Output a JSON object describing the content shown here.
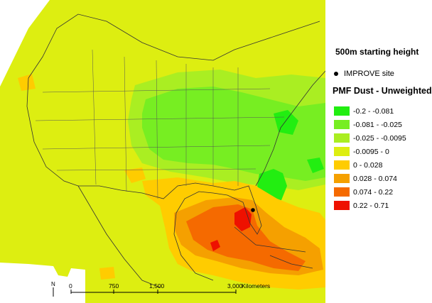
{
  "map": {
    "subtitle": "500m starting height",
    "site_marker_label": "IMPROVE site",
    "legend_title": "PMF Dust - Unweighted",
    "legend": [
      {
        "label": "-0.2 - -0.081",
        "color": "#22ee11"
      },
      {
        "label": "-0.081 - -0.025",
        "color": "#77ee22"
      },
      {
        "label": "-0.025 - -0.0095",
        "color": "#aaee22"
      },
      {
        "label": "-0.0095 - 0",
        "color": "#ddee11"
      },
      {
        "label": "0 - 0.028",
        "color": "#ffcc00"
      },
      {
        "label": "0.028 - 0.074",
        "color": "#f5a000"
      },
      {
        "label": "0.074 - 0.22",
        "color": "#f56a00"
      },
      {
        "label": "0.22 - 0.71",
        "color": "#ee1100"
      }
    ],
    "scale": {
      "ticks": [
        "0",
        "750",
        "1,500",
        "3,000"
      ],
      "unit": "Kilometers",
      "north_label": "N"
    }
  }
}
